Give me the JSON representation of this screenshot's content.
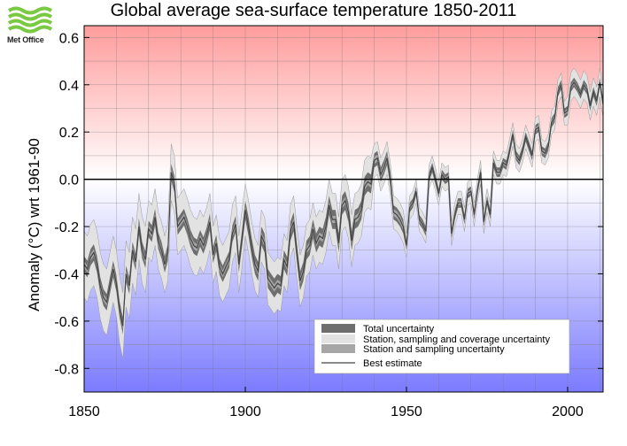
{
  "branding": {
    "logo_text": "Met Office"
  },
  "colors": {
    "warm_top": "#ff9c9c",
    "cool_bottom": "#7b7bff",
    "total_uncertainty": "#6e6e6e",
    "coverage_uncertainty": "#e2e2e2",
    "sampling_uncertainty": "#a6a6a6",
    "best_estimate": "#444444"
  },
  "chart_data": {
    "type": "line",
    "title": "Global average sea-surface temperature 1850-2011",
    "xlabel": "",
    "ylabel": "Anomaly (°C) wrt 1961-90",
    "xlim": [
      1850,
      2011
    ],
    "ylim": [
      -0.9,
      0.65
    ],
    "x_ticks": [
      1850,
      1900,
      1950,
      2000
    ],
    "y_ticks": [
      -0.8,
      -0.6,
      -0.4,
      -0.2,
      0.0,
      0.2,
      0.4,
      0.6
    ],
    "y_tick_labels": [
      "-0.8",
      "-0.6",
      "-0.4",
      "-0.2",
      "0.0",
      "0.2",
      "0.4",
      "0.6"
    ],
    "grid": true,
    "reference_line": 0.0,
    "legend_position": "bottom-right",
    "legend": [
      {
        "label": "Total uncertainty",
        "key": "total_uncertainty"
      },
      {
        "label": "Station, sampling and coverage uncertainty",
        "key": "coverage_uncertainty"
      },
      {
        "label": "Station and sampling uncertainty",
        "key": "sampling_uncertainty"
      },
      {
        "label": "Best estimate",
        "key": "best_estimate"
      }
    ],
    "series": [
      {
        "x": [
          1850,
          1851,
          1852,
          1853,
          1854,
          1855,
          1856,
          1857,
          1858,
          1859,
          1860,
          1861,
          1862,
          1863,
          1864,
          1865,
          1866,
          1867,
          1868,
          1869,
          1870,
          1871,
          1872,
          1873,
          1874,
          1875,
          1876,
          1877,
          1878,
          1879,
          1880,
          1881,
          1882,
          1883,
          1884,
          1885,
          1886,
          1887,
          1888,
          1889,
          1890,
          1891,
          1892,
          1893,
          1894,
          1895,
          1896,
          1897,
          1898,
          1899,
          1900,
          1901,
          1902,
          1903,
          1904,
          1905,
          1906,
          1907,
          1908,
          1909,
          1910,
          1911,
          1912,
          1913,
          1914,
          1915,
          1916,
          1917,
          1918,
          1919,
          1920,
          1921,
          1922,
          1923,
          1924,
          1925,
          1926,
          1927,
          1928,
          1929,
          1930,
          1931,
          1932,
          1933,
          1934,
          1935,
          1936,
          1937,
          1938,
          1939,
          1940,
          1941,
          1942,
          1943,
          1944,
          1945,
          1946,
          1947,
          1948,
          1949,
          1950,
          1951,
          1952,
          1953,
          1954,
          1955,
          1956,
          1957,
          1958,
          1959,
          1960,
          1961,
          1962,
          1963,
          1964,
          1965,
          1966,
          1967,
          1968,
          1969,
          1970,
          1971,
          1972,
          1973,
          1974,
          1975,
          1976,
          1977,
          1978,
          1979,
          1980,
          1981,
          1982,
          1983,
          1984,
          1985,
          1986,
          1987,
          1988,
          1989,
          1990,
          1991,
          1992,
          1993,
          1994,
          1995,
          1996,
          1997,
          1998,
          1999,
          2000,
          2001,
          2002,
          2003,
          2004,
          2005,
          2006,
          2007,
          2008,
          2009,
          2010,
          2011
        ],
        "values": [
          -0.36,
          -0.38,
          -0.33,
          -0.31,
          -0.36,
          -0.45,
          -0.5,
          -0.52,
          -0.45,
          -0.38,
          -0.44,
          -0.55,
          -0.62,
          -0.4,
          -0.45,
          -0.3,
          -0.35,
          -0.2,
          -0.3,
          -0.34,
          -0.21,
          -0.23,
          -0.16,
          -0.26,
          -0.3,
          -0.36,
          -0.31,
          0.03,
          -0.02,
          -0.2,
          -0.18,
          -0.16,
          -0.2,
          -0.25,
          -0.28,
          -0.29,
          -0.25,
          -0.28,
          -0.24,
          -0.18,
          -0.32,
          -0.27,
          -0.37,
          -0.4,
          -0.37,
          -0.34,
          -0.23,
          -0.19,
          -0.36,
          -0.25,
          -0.13,
          -0.2,
          -0.29,
          -0.36,
          -0.39,
          -0.24,
          -0.27,
          -0.42,
          -0.44,
          -0.46,
          -0.44,
          -0.45,
          -0.34,
          -0.37,
          -0.22,
          -0.18,
          -0.31,
          -0.43,
          -0.39,
          -0.3,
          -0.28,
          -0.21,
          -0.27,
          -0.24,
          -0.25,
          -0.2,
          -0.11,
          -0.17,
          -0.17,
          -0.27,
          -0.11,
          -0.09,
          -0.14,
          -0.26,
          -0.17,
          -0.16,
          -0.13,
          -0.03,
          -0.01,
          -0.02,
          0.08,
          0.09,
          0.02,
          0.05,
          0.09,
          0.0,
          -0.14,
          -0.15,
          -0.17,
          -0.2,
          -0.28,
          -0.12,
          -0.1,
          -0.05,
          -0.17,
          -0.19,
          -0.22,
          0.01,
          0.05,
          0.0,
          -0.06,
          0.02,
          0.0,
          0.01,
          -0.23,
          -0.15,
          -0.1,
          -0.1,
          -0.17,
          -0.06,
          -0.05,
          -0.15,
          -0.05,
          0.03,
          -0.18,
          -0.09,
          -0.15,
          0.07,
          0.03,
          0.03,
          0.07,
          0.06,
          0.12,
          0.19,
          0.1,
          0.08,
          0.12,
          0.18,
          0.14,
          0.1,
          0.21,
          0.22,
          0.12,
          0.11,
          0.14,
          0.24,
          0.26,
          0.37,
          0.4,
          0.28,
          0.29,
          0.39,
          0.41,
          0.39,
          0.36,
          0.4,
          0.38,
          0.31,
          0.37,
          0.33,
          0.41,
          0.32
        ]
      }
    ]
  }
}
